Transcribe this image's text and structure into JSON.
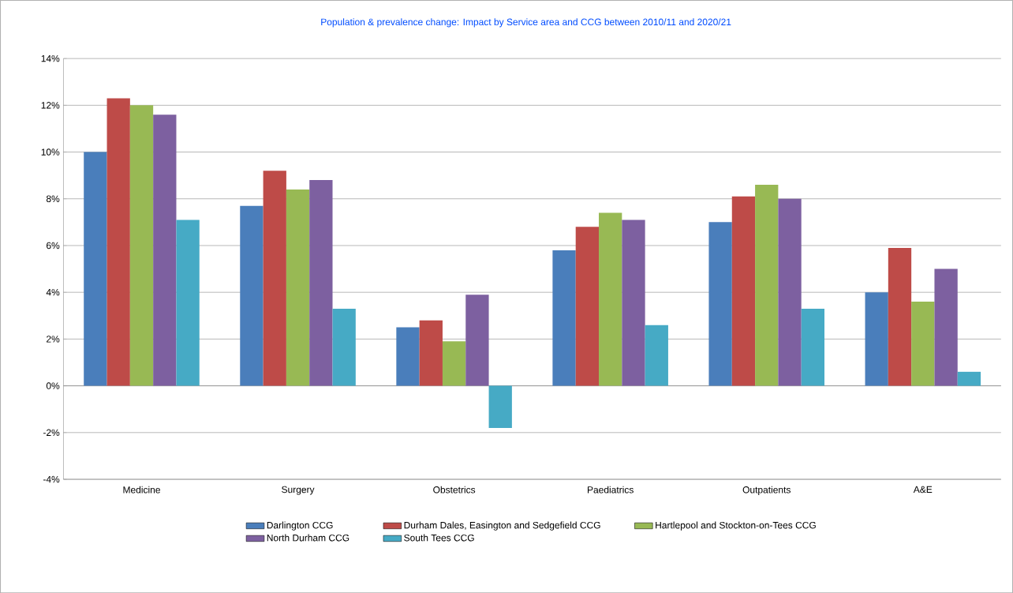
{
  "chart_data": {
    "type": "bar",
    "title": "Population & prevalence change: Impact by Service area and CCG between 2010/11 and 2020/21",
    "categories": [
      "Medicine",
      "Surgery",
      "Obstetrics",
      "Paediatrics",
      "Outpatients",
      "A&E"
    ],
    "series": [
      {
        "name": "Darlington CCG",
        "color": "#4a7ebb",
        "values": [
          10.0,
          7.7,
          2.5,
          5.8,
          7.0,
          4.0
        ]
      },
      {
        "name": "Durham Dales, Easington and Sedgefield CCG",
        "color": "#be4b48",
        "values": [
          12.3,
          9.2,
          2.8,
          6.8,
          8.1,
          5.9
        ]
      },
      {
        "name": "Hartlepool and Stockton-on-Tees CCG",
        "color": "#98b954",
        "values": [
          12.0,
          8.4,
          1.9,
          7.4,
          8.6,
          3.6
        ]
      },
      {
        "name": "North Durham CCG",
        "color": "#7d60a0",
        "values": [
          11.6,
          8.8,
          3.9,
          7.1,
          8.0,
          5.0
        ]
      },
      {
        "name": "South Tees CCG",
        "color": "#46aac5",
        "values": [
          7.1,
          3.3,
          -1.8,
          2.6,
          3.3,
          0.6
        ]
      }
    ],
    "ylim": [
      -4,
      14
    ],
    "yticks": [
      {
        "value": -4,
        "label": "-4%"
      },
      {
        "value": -2,
        "label": "-2%"
      },
      {
        "value": 0,
        "label": "0%"
      },
      {
        "value": 2,
        "label": "2%"
      },
      {
        "value": 4,
        "label": "4%"
      },
      {
        "value": 6,
        "label": "6%"
      },
      {
        "value": 8,
        "label": "8%"
      },
      {
        "value": 10,
        "label": "10%"
      },
      {
        "value": 12,
        "label": "12%"
      },
      {
        "value": 14,
        "label": "14%"
      }
    ],
    "grid": "y",
    "legend": "bottom"
  }
}
